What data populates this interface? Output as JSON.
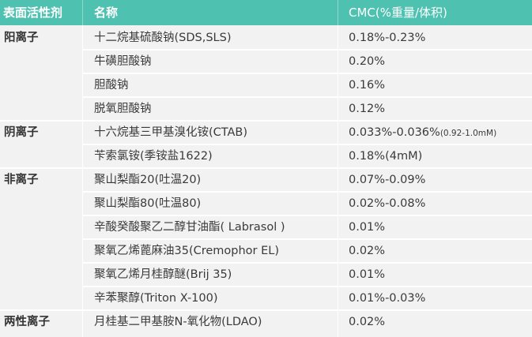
{
  "header": {
    "col_category": "表面活性剂",
    "col_name": "名称",
    "col_cmc": "CMC(%重量/体积)"
  },
  "rows": [
    {
      "category": "阳离子",
      "name": "十二烷基硫酸钠(SDS,SLS)",
      "cmc": "0.18%-0.23%",
      "cmc_note": ""
    },
    {
      "category": "",
      "name": "牛磺胆酸钠",
      "cmc": "0.20%",
      "cmc_note": ""
    },
    {
      "category": "",
      "name": "胆酸钠",
      "cmc": "0.16%",
      "cmc_note": ""
    },
    {
      "category": "",
      "name": "脱氧胆酸钠",
      "cmc": "0.12%",
      "cmc_note": ""
    },
    {
      "category": "阴离子",
      "name": "十六烷基三甲基溴化铵(CTAB)",
      "cmc": "0.033%-0.036%",
      "cmc_note": "(0.92-1.0mM)"
    },
    {
      "category": "",
      "name": "苄索氯铵(季铵盐1622)",
      "cmc": "0.18%(4mM)",
      "cmc_note": ""
    },
    {
      "category": "非离子",
      "name": "聚山梨酯20(吐温20)",
      "cmc": "0.07%-0.09%",
      "cmc_note": ""
    },
    {
      "category": "",
      "name": "聚山梨酯80(吐温80)",
      "cmc": "0.02%-0.08%",
      "cmc_note": ""
    },
    {
      "category": "",
      "name": "辛酸癸酸聚乙二醇甘油酯( Labrasol )",
      "cmc": "0.01%",
      "cmc_note": ""
    },
    {
      "category": "",
      "name": "聚氧乙烯蓖麻油35(Cremophor EL)",
      "cmc": "0.02%",
      "cmc_note": ""
    },
    {
      "category": "",
      "name": "聚氧乙烯月桂醇醚(Brij 35)",
      "cmc": "0.01%",
      "cmc_note": ""
    },
    {
      "category": "",
      "name": "辛苯聚醇(Triton X-100)",
      "cmc": "0.01%-0.03%",
      "cmc_note": ""
    },
    {
      "category": "两性离子",
      "name": "月桂基二甲基胺N-氧化物(LDAO)",
      "cmc": "0.02%",
      "cmc_note": ""
    }
  ]
}
